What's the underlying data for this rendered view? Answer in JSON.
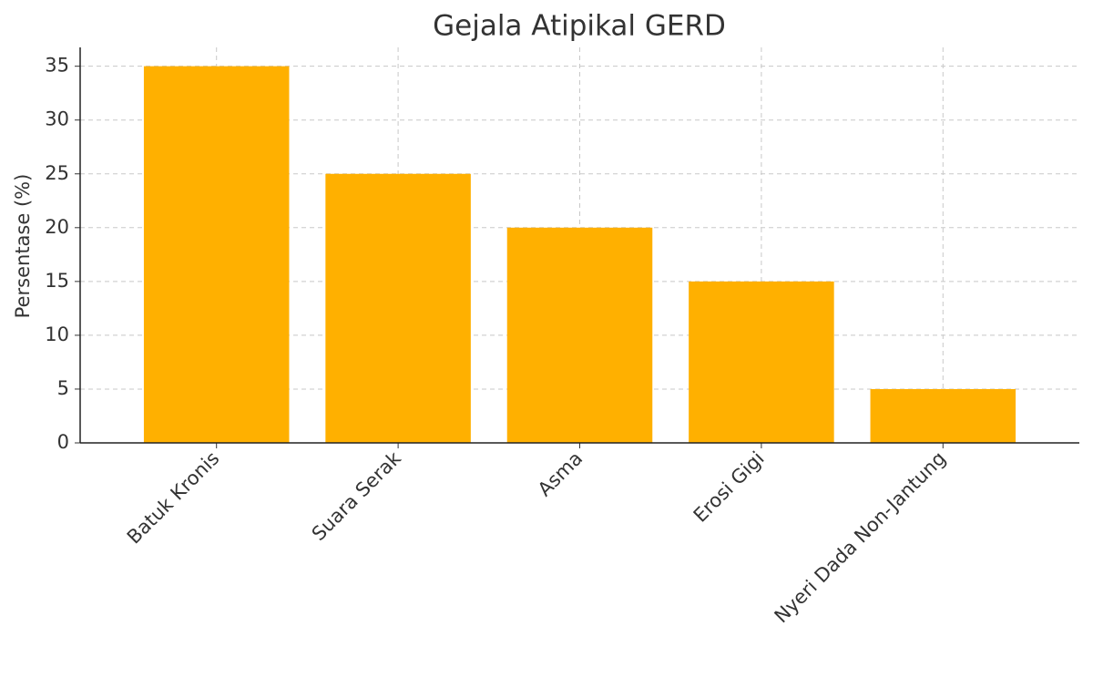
{
  "chart_data": {
    "type": "bar",
    "title": "Gejala Atipikal GERD",
    "y_label": "Persentase (%)",
    "categories": [
      "Batuk Kronis",
      "Suara Serak",
      "Asma",
      "Erosi Gigi",
      "Nyeri Dada Non-Jantung"
    ],
    "values": [
      35,
      25,
      20,
      15,
      5
    ],
    "color": "#ffb000",
    "ylim": [
      0,
      36.75
    ],
    "yticks": [
      0,
      5,
      10,
      15,
      20,
      25,
      30,
      35
    ],
    "grid": true
  }
}
